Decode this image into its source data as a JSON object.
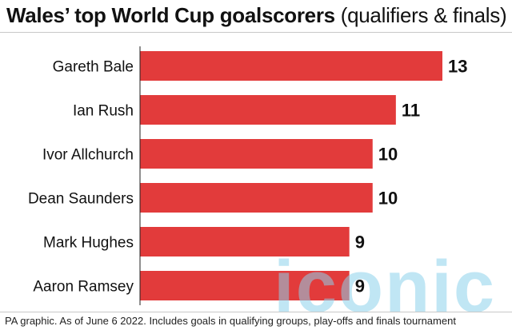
{
  "title": {
    "bold": "Wales’ top World Cup goalscorers",
    "light": "(qualifiers & finals)"
  },
  "footer": "PA graphic. As of June 6 2022. Includes goals in qualifying groups, play-offs and finals tournament",
  "watermark": "iconic",
  "colors": {
    "bar": "#e23b3b",
    "text": "#111111",
    "watermark": "#8cd2eb"
  },
  "chart_data": {
    "type": "bar",
    "orientation": "horizontal",
    "title": "Wales’ top World Cup goalscorers (qualifiers & finals)",
    "categories": [
      "Gareth Bale",
      "Ian Rush",
      "Ivor Allchurch",
      "Dean Saunders",
      "Mark Hughes",
      "Aaron Ramsey"
    ],
    "values": [
      13,
      11,
      10,
      10,
      9,
      9
    ],
    "xlim": [
      0,
      13
    ],
    "grid": false,
    "legend": "none"
  }
}
